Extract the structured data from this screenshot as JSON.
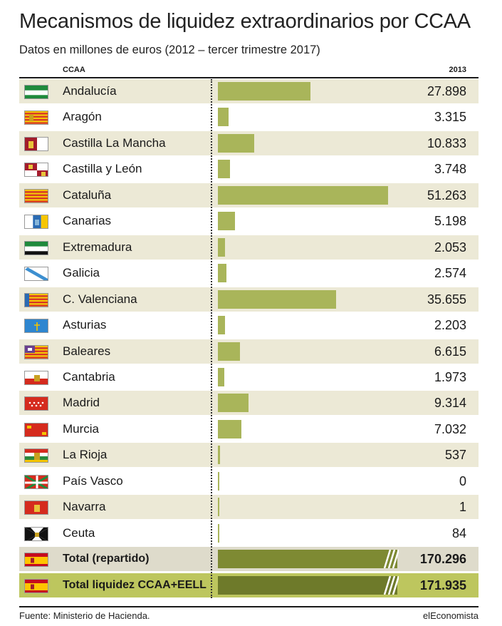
{
  "header": {
    "title": "Mecanismos de liquidez extraordinarios por CCAA",
    "subtitle": "Datos en millones de euros (2012 – tercer trimestre 2017)"
  },
  "columns": {
    "ccaa": "CCAA",
    "year": "2013"
  },
  "chart_data": {
    "type": "bar",
    "title": "Mecanismos de liquidez extraordinarios por CCAA",
    "subtitle": "Datos en millones de euros (2012 – tercer trimestre 2017)",
    "categories": [
      "Andalucía",
      "Aragón",
      "Castilla La Mancha",
      "Castilla y León",
      "Cataluña",
      "Canarias",
      "Extremadura",
      "Galicia",
      "C. Valenciana",
      "Asturias",
      "Baleares",
      "Cantabria",
      "Madrid",
      "Murcia",
      "La Rioja",
      "País Vasco",
      "Navarra",
      "Ceuta"
    ],
    "values": [
      27898,
      3315,
      10833,
      3748,
      51263,
      5198,
      2053,
      2574,
      35655,
      2203,
      6615,
      1973,
      9314,
      7032,
      537,
      0,
      1,
      84
    ],
    "labels": [
      "27.898",
      "3.315",
      "10.833",
      "3.748",
      "51.263",
      "5.198",
      "2.053",
      "2.574",
      "35.655",
      "2.203",
      "6.615",
      "1.973",
      "9.314",
      "7.032",
      "537",
      "0",
      "1",
      "84"
    ],
    "orientation": "horizontal",
    "xlim": [
      0,
      51263
    ],
    "totals": [
      {
        "name": "Total  (repartido)",
        "value": 170296,
        "label": "170.296"
      },
      {
        "name": "Total liquidez CCAA+EELL",
        "value": 171935,
        "label": "171.935"
      }
    ],
    "colors": {
      "bar": "#a9b55a",
      "total_bar": "#7e8a33",
      "row_shade": "#ece9d6",
      "total_highlight": "#bdc65e"
    }
  },
  "flags": [
    "andalucia-flag",
    "aragon-flag",
    "castilla-la-mancha-flag",
    "castilla-y-leon-flag",
    "cataluna-flag",
    "canarias-flag",
    "extremadura-flag",
    "galicia-flag",
    "c-valenciana-flag",
    "asturias-flag",
    "baleares-flag",
    "cantabria-flag",
    "madrid-flag",
    "murcia-flag",
    "la-rioja-flag",
    "pais-vasco-flag",
    "navarra-flag",
    "ceuta-flag",
    "espana-flag",
    "espana-flag"
  ],
  "footer": {
    "source": "Fuente: Ministerio de Hacienda.",
    "brand": "elEconomista"
  }
}
